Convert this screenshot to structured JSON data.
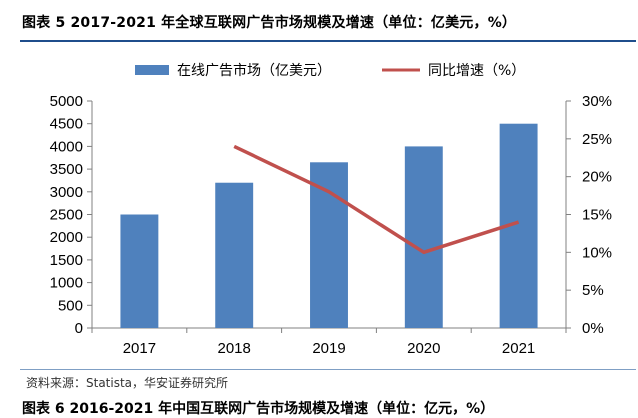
{
  "figure": {
    "title": "图表 5 2017-2021 年全球互联网广告市场规模及增速（单位：亿美元，%）",
    "source": "资料来源：Statista，华安证券研究所",
    "next_title": "图表 6 2016-2021 年中国互联网广告市场规模及增速（单位：亿元，%）"
  },
  "chart_data": {
    "type": "bar",
    "categories": [
      "2017",
      "2018",
      "2019",
      "2020",
      "2021"
    ],
    "series": [
      {
        "name": "在线广告市场（亿美元）",
        "type": "bar",
        "axis": "left",
        "values": [
          2500,
          3200,
          3650,
          4000,
          4500
        ],
        "color": "#4f81bd"
      },
      {
        "name": "同比增速（%）",
        "type": "line",
        "axis": "right",
        "values": [
          null,
          24,
          18,
          10,
          14
        ],
        "color": "#c0504d"
      }
    ],
    "y_left": {
      "min": 0,
      "max": 5000,
      "step": 500,
      "ticks": [
        "0",
        "500",
        "1000",
        "1500",
        "2000",
        "2500",
        "3000",
        "3500",
        "4000",
        "4500",
        "5000"
      ]
    },
    "y_right": {
      "min": 0,
      "max": 30,
      "step": 5,
      "ticks": [
        "0%",
        "5%",
        "10%",
        "15%",
        "20%",
        "25%",
        "30%"
      ]
    },
    "grid": false,
    "legend_position": "top-center"
  }
}
